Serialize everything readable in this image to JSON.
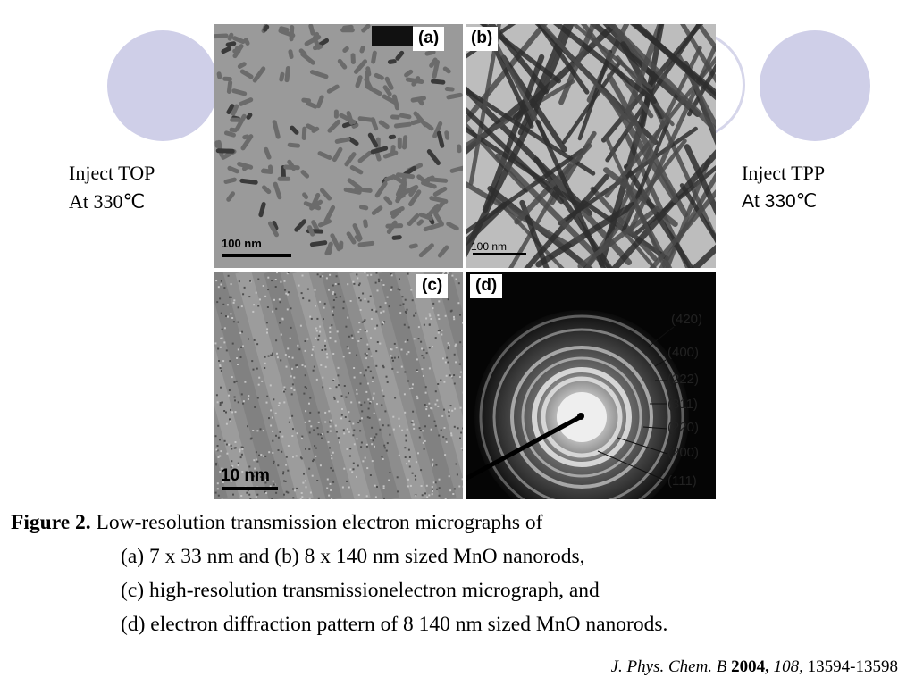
{
  "left_label": {
    "line1": "Inject TOP",
    "line2": "At 330℃"
  },
  "right_label": {
    "line1": "Inject TPP",
    "line2": "At 330℃"
  },
  "panels": {
    "a": {
      "letter": "(a)",
      "scale": "100 nm"
    },
    "b": {
      "letter": "(b)",
      "scale": "100 nm"
    },
    "c": {
      "letter": "(c)",
      "scale": "10 nm"
    },
    "d": {
      "letter": "(d)",
      "rings": [
        "(420)",
        "(400)",
        "(222)",
        "(311)",
        "(220)",
        "(200)",
        "(111)"
      ]
    }
  },
  "caption": {
    "label": "Figure 2.",
    "line1": " Low-resolution transmission electron micrographs of",
    "line2": "(a) 7 x 33 nm and (b) 8 x 140 nm sized MnO nanorods,",
    "line3": "(c) high-resolution transmissionelectron micrograph, and",
    "line4": "(d) electron diffraction pattern of 8  140 nm sized MnO nanorods."
  },
  "reference": {
    "journal": "J. Phys. Chem. B",
    "year": "2004,",
    "volume": "108,",
    "pages": "13594-13598"
  }
}
